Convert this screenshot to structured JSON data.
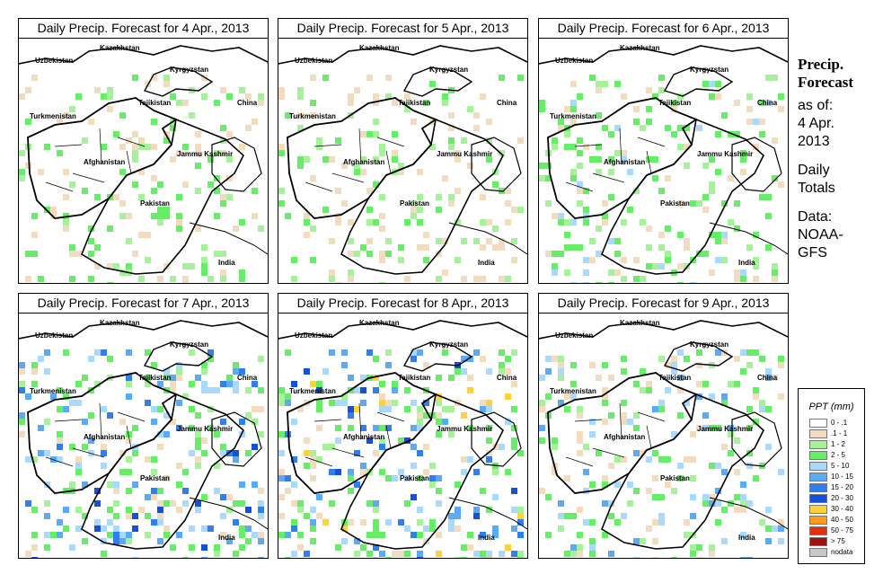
{
  "panels": [
    {
      "title": "Daily Precip. Forecast for  4 Apr., 2013",
      "intensity": 0.35,
      "seed": 11
    },
    {
      "title": "Daily Precip. Forecast for  5 Apr., 2013",
      "intensity": 0.3,
      "seed": 23
    },
    {
      "title": "Daily Precip. Forecast for  6 Apr., 2013",
      "intensity": 0.5,
      "seed": 37
    },
    {
      "title": "Daily Precip. Forecast for  7 Apr., 2013",
      "intensity": 0.8,
      "seed": 41
    },
    {
      "title": "Daily Precip. Forecast for  8 Apr., 2013",
      "intensity": 0.85,
      "seed": 53
    },
    {
      "title": "Daily Precip. Forecast for  9 Apr., 2013",
      "intensity": 0.65,
      "seed": 67
    }
  ],
  "map_labels": {
    "kazakhstan": "Kazakhstan",
    "uzbekistan": "Uzbekistan",
    "kyrgyzstan": "Kyrgyzstan",
    "tajikistan": "Tajikistan",
    "turkmenistan": "Turkmenistan",
    "china": "China",
    "afghanistan": "Afghanistan",
    "jammu_kashmir": "Jammu Kashmir",
    "pakistan": "Pakistan",
    "india": "India"
  },
  "sidebar": {
    "heading_line1": "Precip.",
    "heading_line2": "Forecast",
    "as_of_label": "as of:",
    "date_line1": "4 Apr.",
    "date_line2": "2013",
    "totals_line1": "Daily",
    "totals_line2": "Totals",
    "data_label": "Data:",
    "source_line1": "NOAA-",
    "source_line2": "GFS"
  },
  "legend": {
    "title": "PPT (mm)",
    "items": [
      {
        "label": "0 - .1",
        "color": "#ffffff"
      },
      {
        "label": ".1 - 1",
        "color": "#f2dcbf"
      },
      {
        "label": "1 - 2",
        "color": "#a6f29a"
      },
      {
        "label": "2 - 5",
        "color": "#66ee66"
      },
      {
        "label": "5 - 10",
        "color": "#a9d9ff"
      },
      {
        "label": "10 - 15",
        "color": "#5aaaf5"
      },
      {
        "label": "15 - 20",
        "color": "#2f7fee"
      },
      {
        "label": "20 - 30",
        "color": "#1450d8"
      },
      {
        "label": "30 - 40",
        "color": "#ffd23c"
      },
      {
        "label": "40 - 50",
        "color": "#ff9a1a"
      },
      {
        "label": "50 - 75",
        "color": "#e23010"
      },
      {
        "label": "> 75",
        "color": "#a01010"
      },
      {
        "label": "nodata",
        "color": "#c8c8c8"
      }
    ]
  }
}
